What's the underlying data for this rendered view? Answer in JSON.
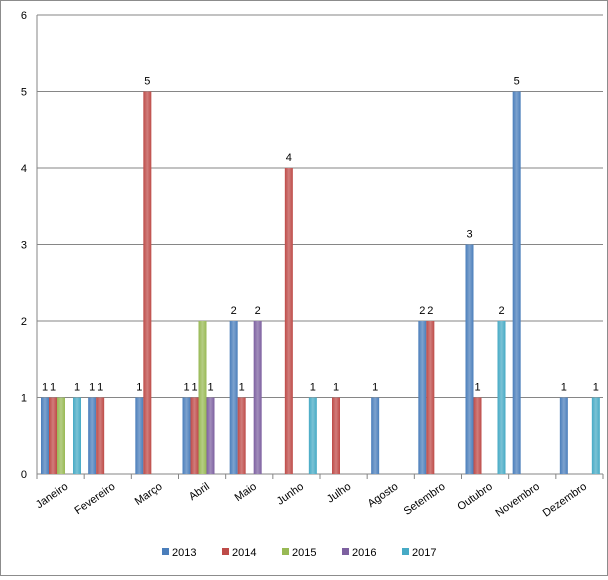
{
  "chart_data": {
    "type": "bar",
    "title": "",
    "xlabel": "",
    "ylabel": "",
    "ylim": [
      0,
      6
    ],
    "yticks": [
      0,
      1,
      2,
      3,
      4,
      5,
      6
    ],
    "grid": true,
    "legend_position": "bottom",
    "categories": [
      "Janeiro",
      "Fevereiro",
      "Março",
      "Abril",
      "Maio",
      "Junho",
      "Julho",
      "Agosto",
      "Setembro",
      "Outubro",
      "Novembro",
      "Dezembro"
    ],
    "series": [
      {
        "name": "2013",
        "color": "#4a7ebb",
        "values": [
          1,
          1,
          1,
          1,
          2,
          null,
          null,
          1,
          2,
          3,
          5,
          1
        ]
      },
      {
        "name": "2014",
        "color": "#be4b48",
        "values": [
          1,
          1,
          5,
          1,
          1,
          4,
          1,
          null,
          2,
          1,
          null,
          null
        ]
      },
      {
        "name": "2015",
        "color": "#98b954",
        "values": [
          1,
          null,
          null,
          2,
          null,
          null,
          null,
          null,
          null,
          null,
          null,
          null
        ]
      },
      {
        "name": "2016",
        "color": "#7d60a0",
        "values": [
          null,
          null,
          null,
          1,
          2,
          null,
          null,
          null,
          null,
          null,
          null,
          null
        ]
      },
      {
        "name": "2017",
        "color": "#46aac5",
        "values": [
          1,
          null,
          null,
          null,
          null,
          1,
          null,
          null,
          null,
          2,
          null,
          1
        ]
      }
    ],
    "data_labels_shown": {
      "2013": [
        true,
        true,
        true,
        true,
        true,
        false,
        false,
        true,
        true,
        true,
        true,
        true
      ],
      "2014": [
        true,
        true,
        true,
        true,
        true,
        true,
        true,
        false,
        true,
        true,
        false,
        false
      ],
      "2015": [
        false,
        false,
        false,
        false,
        false,
        false,
        false,
        false,
        false,
        false,
        false,
        false
      ],
      "2016": [
        false,
        false,
        false,
        true,
        true,
        false,
        false,
        false,
        false,
        false,
        false,
        false
      ],
      "2017": [
        true,
        false,
        false,
        false,
        false,
        true,
        false,
        false,
        false,
        true,
        false,
        true
      ]
    }
  }
}
